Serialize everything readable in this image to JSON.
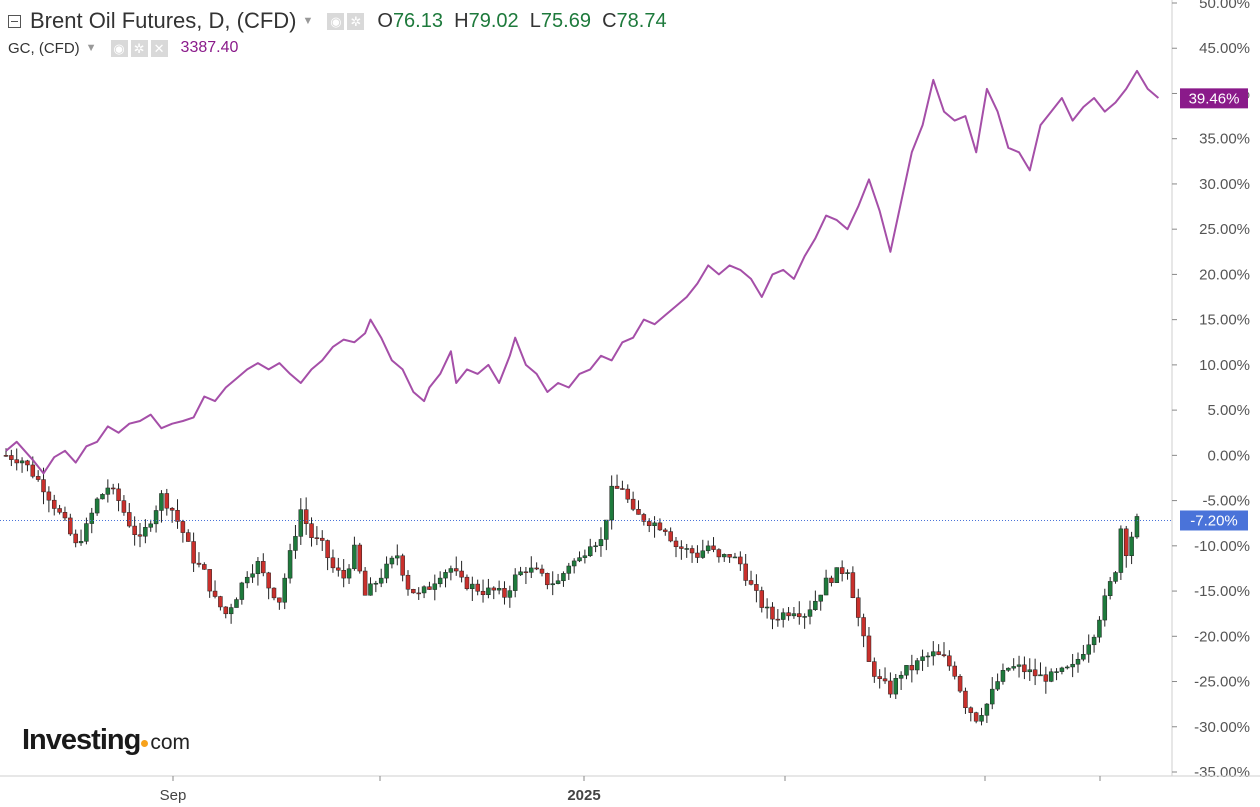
{
  "legend": {
    "main_symbol": "Brent Oil Futures, D, (CFD)",
    "open_label": "O",
    "open": "76.13",
    "high_label": "H",
    "high": "79.02",
    "low_label": "L",
    "low": "75.69",
    "close_label": "C",
    "close": "78.74",
    "compare_symbol": "GC, (CFD)",
    "compare_value": "3387.40"
  },
  "logo": {
    "text": "Investing",
    "suffix": "com"
  },
  "colors": {
    "up": "#1e7a3c",
    "down": "#c9302c",
    "gold_line": "#a54fa8",
    "oil_badge": "#4a73d9",
    "gold_badge": "#8a1a8a",
    "axis": "#555555"
  },
  "chart_data": {
    "type": "line",
    "x_ticks": [
      "Sep",
      "2025"
    ],
    "y_unit": "%",
    "ylim": [
      -35,
      50
    ],
    "y_ticks": [
      "50.00%",
      "45.00%",
      "40.00%",
      "35.00%",
      "30.00%",
      "25.00%",
      "20.00%",
      "15.00%",
      "10.00%",
      "5.00%",
      "0.00%",
      "-5.00%",
      "-10.00%",
      "-15.00%",
      "-20.00%",
      "-25.00%",
      "-30.00%",
      "-35.00%"
    ],
    "series": [
      {
        "name": "GC, (CFD)",
        "kind": "line",
        "last_label": "39.46%",
        "points": [
          [
            0,
            0.5
          ],
          [
            2,
            1.5
          ],
          [
            5,
            -0.5
          ],
          [
            7,
            -2.0
          ],
          [
            9,
            -0.2
          ],
          [
            11,
            0.5
          ],
          [
            13,
            -0.8
          ],
          [
            15,
            1.0
          ],
          [
            17,
            1.5
          ],
          [
            19,
            3.2
          ],
          [
            21,
            2.5
          ],
          [
            23,
            3.5
          ],
          [
            25,
            3.8
          ],
          [
            27,
            4.5
          ],
          [
            29,
            3.0
          ],
          [
            31,
            3.5
          ],
          [
            33,
            3.8
          ],
          [
            35,
            4.2
          ],
          [
            37,
            6.5
          ],
          [
            39,
            6.0
          ],
          [
            41,
            7.5
          ],
          [
            43,
            8.5
          ],
          [
            45,
            9.5
          ],
          [
            47,
            10.2
          ],
          [
            49,
            9.5
          ],
          [
            51,
            10.2
          ],
          [
            53,
            9.0
          ],
          [
            55,
            8.0
          ],
          [
            57,
            9.5
          ],
          [
            59,
            10.5
          ],
          [
            61,
            12.0
          ],
          [
            63,
            12.8
          ],
          [
            65,
            12.5
          ],
          [
            67,
            13.5
          ],
          [
            68,
            15.0
          ],
          [
            70,
            13.0
          ],
          [
            72,
            10.5
          ],
          [
            74,
            9.5
          ],
          [
            76,
            7.0
          ],
          [
            78,
            6.0
          ],
          [
            79,
            7.5
          ],
          [
            81,
            9.0
          ],
          [
            83,
            11.5
          ],
          [
            84,
            8.0
          ],
          [
            86,
            9.5
          ],
          [
            88,
            9.0
          ],
          [
            90,
            10.0
          ],
          [
            92,
            8.0
          ],
          [
            94,
            11.0
          ],
          [
            95,
            13.0
          ],
          [
            97,
            10.0
          ],
          [
            99,
            9.0
          ],
          [
            101,
            7.0
          ],
          [
            103,
            8.0
          ],
          [
            105,
            7.5
          ],
          [
            107,
            9.0
          ],
          [
            109,
            9.5
          ],
          [
            111,
            11.0
          ],
          [
            113,
            10.5
          ],
          [
            115,
            12.5
          ],
          [
            117,
            13.0
          ],
          [
            119,
            15.0
          ],
          [
            121,
            14.5
          ],
          [
            123,
            15.5
          ],
          [
            125,
            16.5
          ],
          [
            127,
            17.5
          ],
          [
            129,
            19.0
          ],
          [
            131,
            21.0
          ],
          [
            133,
            20.0
          ],
          [
            135,
            21.0
          ],
          [
            137,
            20.5
          ],
          [
            139,
            19.5
          ],
          [
            141,
            17.5
          ],
          [
            143,
            20.0
          ],
          [
            145,
            20.5
          ],
          [
            147,
            19.5
          ],
          [
            149,
            22.0
          ],
          [
            151,
            24.0
          ],
          [
            153,
            26.5
          ],
          [
            155,
            26.0
          ],
          [
            157,
            25.0
          ],
          [
            159,
            27.5
          ],
          [
            161,
            30.5
          ],
          [
            163,
            27.0
          ],
          [
            165,
            22.5
          ],
          [
            167,
            28.0
          ],
          [
            169,
            33.5
          ],
          [
            171,
            36.5
          ],
          [
            173,
            41.5
          ],
          [
            175,
            38.0
          ],
          [
            177,
            37.0
          ],
          [
            179,
            37.5
          ],
          [
            181,
            33.5
          ],
          [
            183,
            40.5
          ],
          [
            185,
            38.0
          ],
          [
            187,
            34.0
          ],
          [
            189,
            33.5
          ],
          [
            191,
            31.5
          ],
          [
            193,
            36.5
          ],
          [
            195,
            38.0
          ],
          [
            197,
            39.5
          ],
          [
            199,
            37.0
          ],
          [
            201,
            38.5
          ],
          [
            203,
            39.5
          ],
          [
            205,
            38.0
          ],
          [
            207,
            39.0
          ],
          [
            209,
            40.5
          ],
          [
            211,
            42.5
          ],
          [
            213,
            40.5
          ],
          [
            215,
            39.5
          ]
        ]
      },
      {
        "name": "Brent Oil Futures",
        "kind": "candlestick",
        "last_label": "-7.20%",
        "close_path": [
          [
            0,
            0
          ],
          [
            3,
            -0.5
          ],
          [
            5,
            -2.0
          ],
          [
            7,
            -3.5
          ],
          [
            9,
            -5.5
          ],
          [
            11,
            -7.5
          ],
          [
            13,
            -10.0
          ],
          [
            15,
            -8.0
          ],
          [
            17,
            -5.0
          ],
          [
            19,
            -3.5
          ],
          [
            21,
            -5.0
          ],
          [
            23,
            -7.5
          ],
          [
            25,
            -9.5
          ],
          [
            27,
            -7.0
          ],
          [
            29,
            -4.5
          ],
          [
            31,
            -6.0
          ],
          [
            33,
            -8.5
          ],
          [
            35,
            -11.5
          ],
          [
            37,
            -13.0
          ],
          [
            39,
            -16.0
          ],
          [
            41,
            -17.5
          ],
          [
            43,
            -15.5
          ],
          [
            45,
            -13.0
          ],
          [
            47,
            -12.0
          ],
          [
            49,
            -14.5
          ],
          [
            51,
            -16.0
          ],
          [
            53,
            -11.0
          ],
          [
            55,
            -6.0
          ],
          [
            57,
            -9.0
          ],
          [
            59,
            -10.0
          ],
          [
            61,
            -12.5
          ],
          [
            63,
            -13.5
          ],
          [
            65,
            -10.5
          ],
          [
            67,
            -15.5
          ],
          [
            69,
            -14.0
          ],
          [
            71,
            -12.5
          ],
          [
            73,
            -11.0
          ],
          [
            75,
            -14.5
          ],
          [
            77,
            -15.5
          ],
          [
            79,
            -14.5
          ],
          [
            81,
            -13.0
          ],
          [
            83,
            -12.5
          ],
          [
            85,
            -14.0
          ],
          [
            87,
            -14.5
          ],
          [
            89,
            -15.0
          ],
          [
            91,
            -15.0
          ],
          [
            93,
            -15.5
          ],
          [
            95,
            -13.5
          ],
          [
            97,
            -12.5
          ],
          [
            99,
            -13.0
          ],
          [
            101,
            -14.0
          ],
          [
            103,
            -14.0
          ],
          [
            105,
            -12.0
          ],
          [
            107,
            -11.5
          ],
          [
            109,
            -9.5
          ],
          [
            111,
            -9.5
          ],
          [
            113,
            -4.0
          ],
          [
            115,
            -3.5
          ],
          [
            117,
            -6.5
          ],
          [
            119,
            -7.0
          ],
          [
            121,
            -7.5
          ],
          [
            123,
            -8.0
          ],
          [
            125,
            -10.0
          ],
          [
            127,
            -10.5
          ],
          [
            129,
            -11.0
          ],
          [
            131,
            -10.0
          ],
          [
            133,
            -11.5
          ],
          [
            135,
            -11.0
          ],
          [
            137,
            -12.0
          ],
          [
            139,
            -14.5
          ],
          [
            141,
            -16.5
          ],
          [
            143,
            -18.0
          ],
          [
            145,
            -17.5
          ],
          [
            147,
            -17.0
          ],
          [
            149,
            -17.5
          ],
          [
            151,
            -16.0
          ],
          [
            153,
            -14.0
          ],
          [
            155,
            -13.0
          ],
          [
            157,
            -12.5
          ],
          [
            159,
            -18.0
          ],
          [
            161,
            -23.0
          ],
          [
            163,
            -25.0
          ],
          [
            165,
            -26.0
          ],
          [
            167,
            -24.0
          ],
          [
            169,
            -23.5
          ],
          [
            171,
            -22.5
          ],
          [
            173,
            -22.0
          ],
          [
            175,
            -22.5
          ],
          [
            177,
            -24.0
          ],
          [
            179,
            -27.5
          ],
          [
            181,
            -29.0
          ],
          [
            183,
            -27.5
          ],
          [
            185,
            -25.0
          ],
          [
            187,
            -23.5
          ],
          [
            189,
            -23.5
          ],
          [
            191,
            -24.0
          ],
          [
            193,
            -24.5
          ],
          [
            195,
            -24.5
          ],
          [
            197,
            -24.0
          ],
          [
            199,
            -23.5
          ],
          [
            201,
            -21.5
          ],
          [
            203,
            -19.5
          ],
          [
            205,
            -16.0
          ],
          [
            207,
            -12.5
          ],
          [
            208,
            -8.0
          ],
          [
            209,
            -10.5
          ],
          [
            211,
            -7.2
          ]
        ]
      }
    ]
  }
}
